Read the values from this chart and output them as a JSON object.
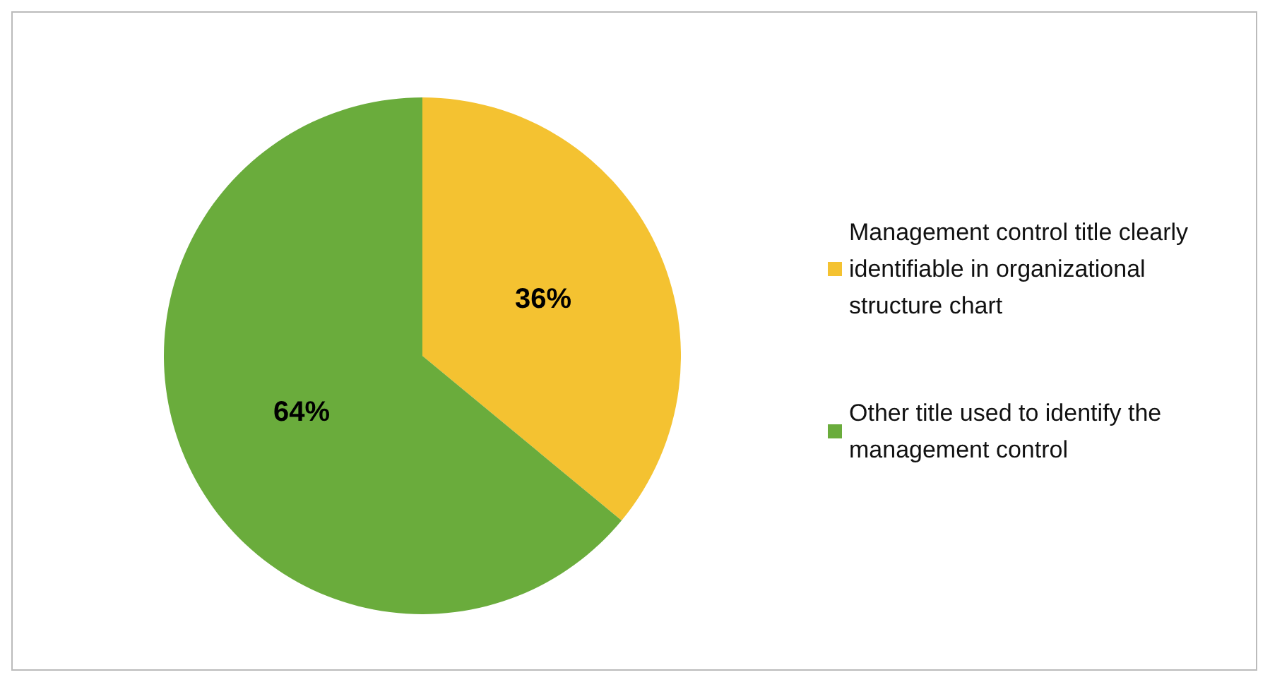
{
  "chart_data": {
    "type": "pie",
    "categories": [
      "Management control title clearly identifiable in organizational structure chart",
      "Other title used to identify the management control"
    ],
    "values": [
      36,
      64
    ],
    "colors": [
      "#f4c231",
      "#6aac3c"
    ],
    "value_labels": [
      "36%",
      "64%"
    ],
    "legend": "right"
  }
}
